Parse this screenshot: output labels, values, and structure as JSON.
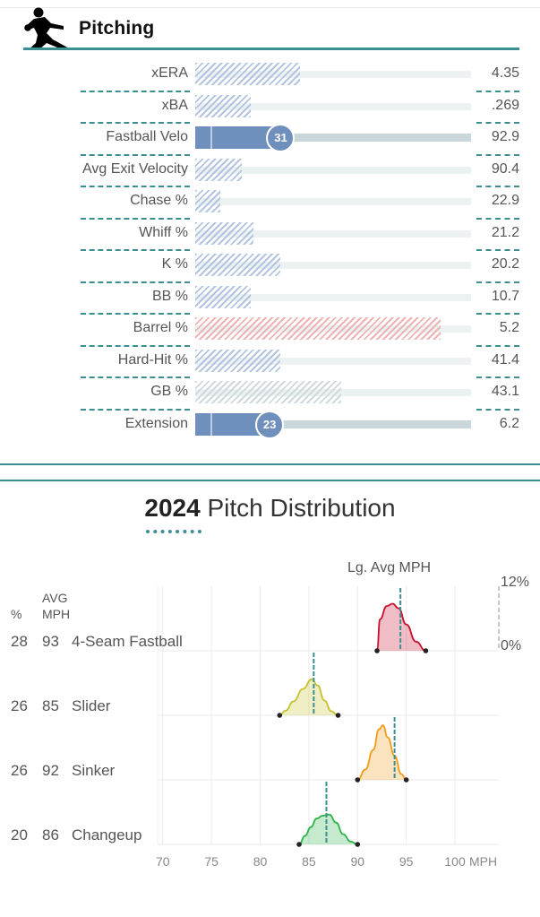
{
  "pitching": {
    "title": "Pitching",
    "metrics": [
      {
        "label": "xERA",
        "value": "4.35",
        "fill": 0.38,
        "style": "hatch-blue"
      },
      {
        "label": "xBA",
        "value": ".269",
        "fill": 0.2,
        "style": "hatch-blue"
      },
      {
        "label": "Fastball Velo",
        "value": "92.9",
        "fill": 0.31,
        "style": "solid-blue",
        "percentile": "31"
      },
      {
        "label": "Avg Exit Velocity",
        "value": "90.4",
        "fill": 0.17,
        "style": "hatch-blue"
      },
      {
        "label": "Chase %",
        "value": "22.9",
        "fill": 0.09,
        "style": "hatch-blue"
      },
      {
        "label": "Whiff %",
        "value": "21.2",
        "fill": 0.21,
        "style": "hatch-blue"
      },
      {
        "label": "K %",
        "value": "20.2",
        "fill": 0.31,
        "style": "hatch-blue"
      },
      {
        "label": "BB %",
        "value": "10.7",
        "fill": 0.2,
        "style": "hatch-blue"
      },
      {
        "label": "Barrel %",
        "value": "5.2",
        "fill": 0.89,
        "style": "hatch-red"
      },
      {
        "label": "Hard-Hit %",
        "value": "41.4",
        "fill": 0.31,
        "style": "hatch-blue"
      },
      {
        "label": "GB %",
        "value": "43.1",
        "fill": 0.53,
        "style": "hatch-grey"
      },
      {
        "label": "Extension",
        "value": "6.2",
        "fill": 0.27,
        "style": "solid-blue",
        "percentile": "23"
      }
    ]
  },
  "distribution": {
    "title_year": "2024",
    "title_text": " Pitch Distribution"
  },
  "colors": {
    "teal": "#3b8f91",
    "solid_blue": "#6f8fbc",
    "hatch_blue": "#b3c4e0",
    "hatch_red": "#ecb4b4",
    "hatch_grey": "#cfd8dc"
  },
  "chart_data": {
    "type": "area",
    "legend_label": "Lg. Avg MPH",
    "col_pct": "%",
    "col_avg": [
      "AVG",
      "MPH"
    ],
    "xlabel": "MPH",
    "xlim": [
      68,
      104.5
    ],
    "xticks": [
      70,
      75,
      80,
      85,
      90,
      95,
      100
    ],
    "y_scale_labels": [
      "12%",
      "0%"
    ],
    "grid": true,
    "pitches": [
      {
        "name": "4-Seam Fastball",
        "pct": "28",
        "avg": "93",
        "league_avg": 94.4,
        "range": [
          92,
          97
        ],
        "color": "#c8102e",
        "curve": [
          [
            92,
            0
          ],
          [
            92.3,
            0.55
          ],
          [
            93,
            0.78
          ],
          [
            93.6,
            0.82
          ],
          [
            94.2,
            0.74
          ],
          [
            95,
            0.46
          ],
          [
            96,
            0.16
          ],
          [
            97,
            0
          ]
        ]
      },
      {
        "name": "Slider",
        "pct": "26",
        "avg": "85",
        "league_avg": 85.5,
        "range": [
          82,
          88
        ],
        "color": "#c5c230",
        "curve": [
          [
            82,
            0
          ],
          [
            82.6,
            0.08
          ],
          [
            83.4,
            0.24
          ],
          [
            84.4,
            0.46
          ],
          [
            85.3,
            0.63
          ],
          [
            85.9,
            0.52
          ],
          [
            86.6,
            0.26
          ],
          [
            87.3,
            0.07
          ],
          [
            88,
            0
          ]
        ]
      },
      {
        "name": "Sinker",
        "pct": "26",
        "avg": "92",
        "league_avg": 93.8,
        "range": [
          90,
          95
        ],
        "color": "#f29a1a",
        "curve": [
          [
            90,
            0
          ],
          [
            90.8,
            0.18
          ],
          [
            91.6,
            0.52
          ],
          [
            92.2,
            0.88
          ],
          [
            92.6,
            0.95
          ],
          [
            93.1,
            0.74
          ],
          [
            93.8,
            0.42
          ],
          [
            94.5,
            0.1
          ],
          [
            95,
            0
          ]
        ]
      },
      {
        "name": "Changeup",
        "pct": "20",
        "avg": "86",
        "league_avg": 86.8,
        "range": [
          84,
          90
        ],
        "color": "#2fb34a",
        "curve": [
          [
            84,
            0
          ],
          [
            84.6,
            0.15
          ],
          [
            85.2,
            0.3
          ],
          [
            85.8,
            0.45
          ],
          [
            86.4,
            0.5
          ],
          [
            87.1,
            0.52
          ],
          [
            87.8,
            0.38
          ],
          [
            88.5,
            0.18
          ],
          [
            89.3,
            0.05
          ],
          [
            90,
            0
          ]
        ]
      }
    ]
  }
}
